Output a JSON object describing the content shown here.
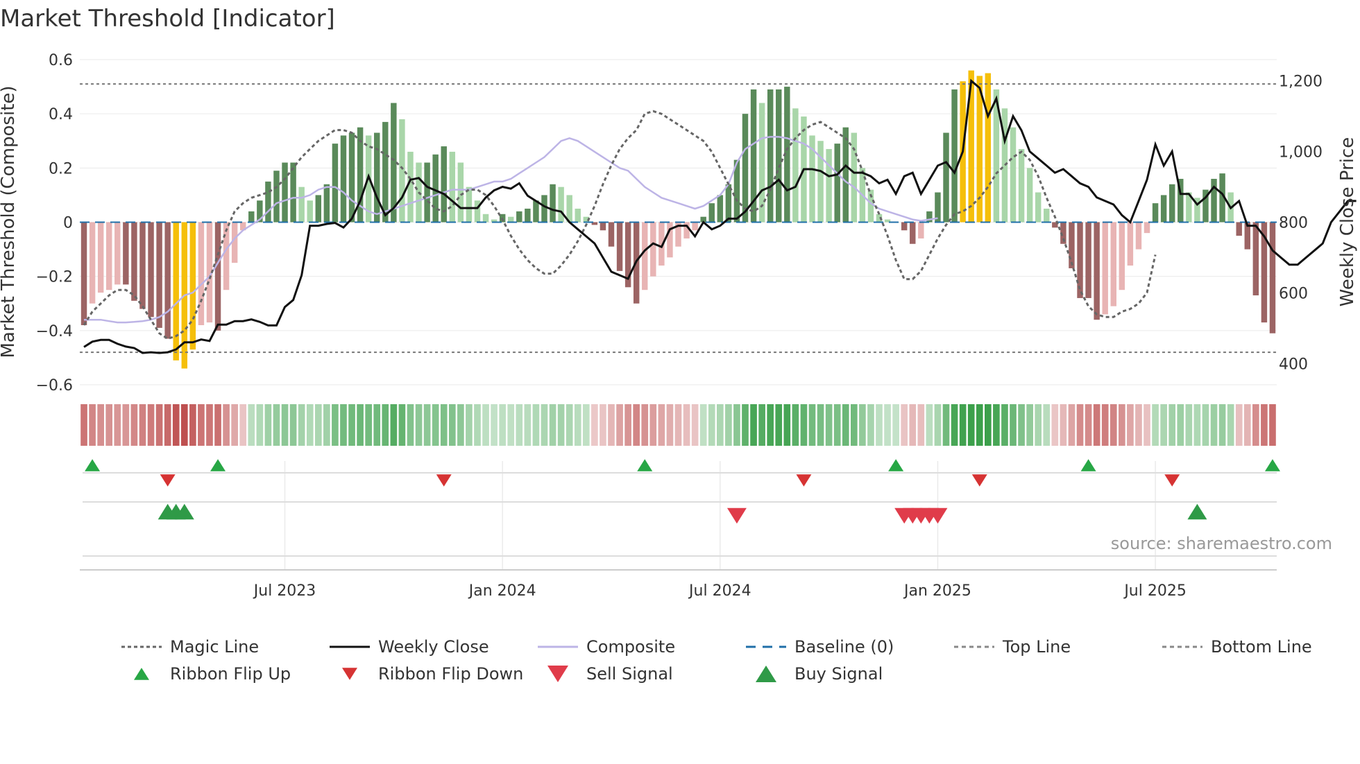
{
  "chart_data": {
    "type": "bar",
    "title": "Market Threshold [Indicator]",
    "ylabel": "Market Threshold (Composite)",
    "y2label": "Weekly Close Price",
    "ylim": [
      -0.6,
      0.6
    ],
    "y2lim": [
      340,
      1260
    ],
    "y_ticks": [
      "0.6",
      "0.4",
      "0.2",
      "0",
      "−0.2",
      "−0.4",
      "−0.6"
    ],
    "y_tick_values": [
      0.6,
      0.4,
      0.2,
      0,
      -0.2,
      -0.4,
      -0.6
    ],
    "y2_ticks": [
      "1,200",
      "1,000",
      "800",
      "600",
      "400"
    ],
    "y2_tick_values": [
      1200,
      1000,
      800,
      600,
      400
    ],
    "x_ticks": [
      "Jul 2023",
      "Jan 2024",
      "Jul 2024",
      "Jan 2025",
      "Jul 2025"
    ],
    "x_tick_weeks": [
      24,
      50,
      76,
      102,
      128
    ],
    "weeks": 143,
    "composite_bars": [
      -0.38,
      -0.3,
      -0.26,
      -0.25,
      -0.23,
      -0.23,
      -0.29,
      -0.32,
      -0.35,
      -0.39,
      -0.43,
      -0.51,
      -0.54,
      -0.47,
      -0.38,
      -0.37,
      -0.4,
      -0.25,
      -0.15,
      -0.03,
      0.04,
      0.08,
      0.15,
      0.19,
      0.22,
      0.22,
      0.13,
      0.08,
      0.1,
      0.14,
      0.29,
      0.32,
      0.33,
      0.35,
      0.32,
      0.33,
      0.37,
      0.44,
      0.38,
      0.26,
      0.22,
      0.22,
      0.25,
      0.28,
      0.26,
      0.22,
      0.13,
      0.08,
      0.03,
      0.01,
      0.03,
      0.02,
      0.04,
      0.05,
      0.08,
      0.1,
      0.14,
      0.13,
      0.1,
      0.05,
      0.02,
      -0.01,
      -0.03,
      -0.09,
      -0.18,
      -0.24,
      -0.3,
      -0.25,
      -0.2,
      -0.16,
      -0.13,
      -0.09,
      -0.06,
      -0.03,
      0.02,
      0.07,
      0.1,
      0.14,
      0.23,
      0.4,
      0.49,
      0.44,
      0.49,
      0.49,
      0.5,
      0.42,
      0.39,
      0.32,
      0.3,
      0.27,
      0.29,
      0.35,
      0.33,
      0.2,
      0.12,
      0.03,
      0.01,
      0,
      -0.03,
      -0.08,
      -0.06,
      0.04,
      0.11,
      0.33,
      0.49,
      0.52,
      0.56,
      0.54,
      0.55,
      0.49,
      0.42,
      0.35,
      0.27,
      0.2,
      0.11,
      0.05,
      -0.02,
      -0.08,
      -0.17,
      -0.28,
      -0.28,
      -0.36,
      -0.34,
      -0.31,
      -0.25,
      -0.16,
      -0.1,
      -0.04,
      0.07,
      0.1,
      0.14,
      0.16,
      0.11,
      0.09,
      0.12,
      0.16,
      0.18,
      0.11,
      -0.05,
      -0.1,
      -0.27,
      -0.37,
      -0.41
    ],
    "magic_line": [
      -0.38,
      -0.33,
      -0.3,
      -0.27,
      -0.25,
      -0.25,
      -0.27,
      -0.31,
      -0.36,
      -0.41,
      -0.43,
      -0.42,
      -0.4,
      -0.36,
      -0.29,
      -0.21,
      -0.12,
      -0.03,
      0.04,
      0.07,
      0.09,
      0.1,
      0.11,
      0.13,
      0.16,
      0.2,
      0.24,
      0.27,
      0.3,
      0.32,
      0.34,
      0.34,
      0.33,
      0.3,
      0.28,
      0.27,
      0.25,
      0.23,
      0.2,
      0.16,
      0.11,
      0.08,
      0.05,
      0.04,
      0.06,
      0.1,
      0.12,
      0.12,
      0.1,
      0.06,
      0.01,
      -0.05,
      -0.1,
      -0.14,
      -0.17,
      -0.19,
      -0.19,
      -0.16,
      -0.12,
      -0.07,
      -0.01,
      0.06,
      0.14,
      0.21,
      0.27,
      0.31,
      0.34,
      0.4,
      0.41,
      0.4,
      0.38,
      0.36,
      0.34,
      0.32,
      0.3,
      0.26,
      0.2,
      0.14,
      0.08,
      0.05,
      0.04,
      0.06,
      0.12,
      0.2,
      0.27,
      0.31,
      0.34,
      0.36,
      0.37,
      0.35,
      0.33,
      0.31,
      0.27,
      0.19,
      0.1,
      0.03,
      -0.05,
      -0.14,
      -0.21,
      -0.21,
      -0.18,
      -0.12,
      -0.06,
      -0.01,
      0.03,
      0.04,
      0.06,
      0.09,
      0.13,
      0.18,
      0.21,
      0.24,
      0.26,
      0.23,
      0.17,
      0.09,
      0.02,
      -0.06,
      -0.15,
      -0.25,
      -0.31,
      -0.34,
      -0.35,
      -0.35,
      -0.33,
      -0.32,
      -0.3,
      -0.26,
      -0.12
    ],
    "composite_line": [
      -0.36,
      -0.36,
      -0.36,
      -0.365,
      -0.37,
      -0.37,
      -0.368,
      -0.365,
      -0.36,
      -0.35,
      -0.33,
      -0.3,
      -0.27,
      -0.26,
      -0.23,
      -0.2,
      -0.15,
      -0.1,
      -0.06,
      -0.03,
      -0.01,
      0.01,
      0.04,
      0.07,
      0.08,
      0.09,
      0.09,
      0.1,
      0.12,
      0.13,
      0.13,
      0.11,
      0.08,
      0.06,
      0.04,
      0.03,
      0.04,
      0.05,
      0.06,
      0.07,
      0.08,
      0.09,
      0.1,
      0.11,
      0.12,
      0.12,
      0.12,
      0.13,
      0.14,
      0.15,
      0.15,
      0.16,
      0.18,
      0.2,
      0.22,
      0.24,
      0.27,
      0.3,
      0.31,
      0.3,
      0.28,
      0.26,
      0.24,
      0.22,
      0.2,
      0.19,
      0.16,
      0.13,
      0.11,
      0.09,
      0.08,
      0.07,
      0.06,
      0.05,
      0.06,
      0.08,
      0.1,
      0.14,
      0.22,
      0.27,
      0.29,
      0.31,
      0.315,
      0.315,
      0.31,
      0.3,
      0.29,
      0.27,
      0.24,
      0.21,
      0.18,
      0.15,
      0.13,
      0.1,
      0.07,
      0.05,
      0.04,
      0.03,
      0.02,
      0.01,
      0.005,
      0.01,
      0.015
    ],
    "weekly_close": [
      447,
      462,
      467,
      467,
      456,
      448,
      444,
      430,
      432,
      430,
      432,
      440,
      460,
      460,
      468,
      464,
      510,
      510,
      520,
      520,
      525,
      518,
      508,
      508,
      560,
      580,
      650,
      790,
      790,
      795,
      798,
      785,
      810,
      860,
      930,
      870,
      820,
      840,
      870,
      920,
      925,
      900,
      890,
      880,
      860,
      840,
      840,
      840,
      870,
      890,
      900,
      895,
      910,
      875,
      860,
      845,
      835,
      830,
      800,
      780,
      760,
      740,
      700,
      660,
      650,
      640,
      690,
      720,
      740,
      730,
      780,
      790,
      790,
      760,
      800,
      780,
      790,
      810,
      810,
      830,
      860,
      890,
      900,
      920,
      890,
      900,
      950,
      950,
      945,
      930,
      935,
      960,
      940,
      940,
      930,
      910,
      920,
      880,
      930,
      940,
      880,
      920,
      960,
      970,
      940,
      1000,
      1200,
      1180,
      1100,
      1150,
      1030,
      1100,
      1060,
      1000,
      980,
      960,
      940,
      950,
      930,
      910,
      900,
      870,
      860,
      850,
      820,
      800,
      860,
      920,
      1020,
      960,
      1000,
      880,
      880,
      850,
      870,
      900,
      880,
      840,
      860,
      790,
      790,
      760,
      720,
      700,
      680,
      680,
      700,
      720,
      740,
      800,
      830,
      860,
      860
    ],
    "series": [
      {
        "name": "Magic Line",
        "color": "#666666"
      },
      {
        "name": "Weekly Close",
        "color": "#111111"
      },
      {
        "name": "Composite",
        "color": "#bdb4e6"
      },
      {
        "name": "Baseline (0)",
        "color": "#1f6fa8"
      },
      {
        "name": "Top Line",
        "color": "#777777",
        "value": 0.51
      },
      {
        "name": "Bottom Line",
        "color": "#777777",
        "value": -0.48
      }
    ],
    "ribbon_flip_up": [
      1,
      16,
      67,
      97,
      120,
      142
    ],
    "ribbon_flip_down": [
      10,
      43,
      86,
      107,
      130
    ],
    "sell_signal": [
      78,
      98,
      99,
      100,
      101,
      102
    ],
    "buy_signal": [
      10,
      11,
      12,
      133
    ],
    "annotation": "source: sharemaestro.com",
    "legend": [
      {
        "label": "Magic Line",
        "symbol": "dotted-line",
        "color": "#666666"
      },
      {
        "label": "Weekly Close",
        "symbol": "line",
        "color": "#111111"
      },
      {
        "label": "Composite",
        "symbol": "line",
        "color": "#bdb4e6"
      },
      {
        "label": "Baseline (0)",
        "symbol": "dashed-line",
        "color": "#1f6fa8"
      },
      {
        "label": "Top Line",
        "symbol": "dashed-line",
        "color": "#888888"
      },
      {
        "label": "Bottom Line",
        "symbol": "dashed-line",
        "color": "#888888"
      },
      {
        "label": "Ribbon Flip Up",
        "symbol": "triangle-up-small",
        "color": "#27a745"
      },
      {
        "label": "Ribbon Flip Down",
        "symbol": "triangle-down-small",
        "color": "#d63333"
      },
      {
        "label": "Sell Signal",
        "symbol": "triangle-down-large",
        "color": "#e03c4a"
      },
      {
        "label": "Buy Signal",
        "symbol": "triangle-up-large",
        "color": "#2f9a47"
      }
    ],
    "legend_position": "bottom"
  },
  "colors": {
    "gold": "#f5bf0a",
    "green_dark": "#5a8a5a",
    "green_light": "#a9d6a9",
    "red_dark": "#9c6464",
    "red_light": "#e8b4b4",
    "grid": "#eaeaea"
  }
}
